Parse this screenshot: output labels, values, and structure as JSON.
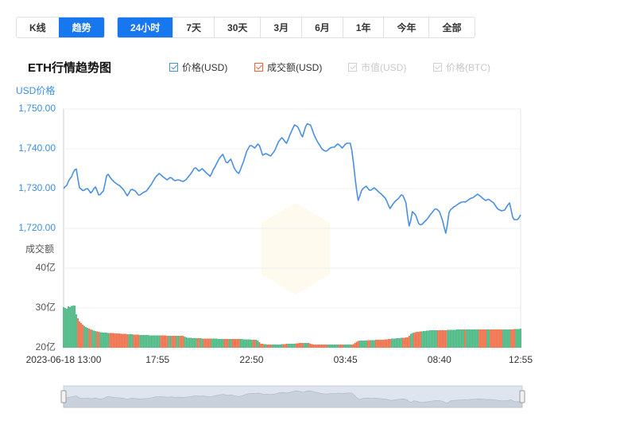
{
  "view_tabs": {
    "items": [
      "K线",
      "趋势"
    ],
    "active": 1
  },
  "period_tabs": {
    "items": [
      "24小时",
      "7天",
      "30天",
      "3月",
      "6月",
      "1年",
      "今年",
      "全部"
    ],
    "active": 0
  },
  "chart_data": {
    "type": "line",
    "title": "ETH行情趋势图",
    "y_label": "USD价格",
    "y2_label": "成交额",
    "disabled_legend": [
      "市值(USD)",
      "价格(BTC)"
    ],
    "categories": [
      "2023-06-18 13:00",
      null,
      null,
      null,
      null,
      null,
      null,
      null,
      null,
      null,
      null,
      null,
      null,
      null,
      null,
      null,
      null,
      null,
      null,
      null,
      null,
      null,
      null,
      null,
      null,
      null,
      null,
      null,
      null,
      null,
      null,
      null,
      null,
      null,
      null,
      null,
      null,
      null,
      null,
      null,
      null,
      null,
      null,
      null,
      null,
      null,
      null,
      null,
      null,
      null,
      null,
      null,
      null,
      null,
      null,
      null,
      null,
      null,
      null,
      "17:55",
      null,
      null,
      null,
      null,
      null,
      null,
      null,
      null,
      null,
      null,
      null,
      null,
      null,
      null,
      null,
      null,
      null,
      null,
      null,
      null,
      null,
      null,
      null,
      null,
      null,
      null,
      null,
      null,
      null,
      null,
      null,
      null,
      null,
      null,
      null,
      null,
      null,
      null,
      null,
      null,
      null,
      null,
      null,
      null,
      null,
      null,
      null,
      null,
      null,
      null,
      null,
      null,
      null,
      null,
      null,
      null,
      null,
      null,
      "22:50",
      null,
      null,
      null,
      null,
      null,
      null,
      null,
      null,
      null,
      null,
      null,
      null,
      null,
      null,
      null,
      null,
      null,
      null,
      null,
      null,
      null,
      null,
      null,
      null,
      null,
      null,
      null,
      null,
      null,
      null,
      null,
      null,
      null,
      null,
      null,
      null,
      null,
      null,
      null,
      null,
      null,
      null,
      null,
      null,
      null,
      null,
      null,
      null,
      null,
      null,
      null,
      null,
      null,
      null,
      null,
      null,
      null,
      null,
      "03:45",
      null,
      null,
      null,
      null,
      null,
      null,
      null,
      null,
      null,
      null,
      null,
      null,
      null,
      null,
      null,
      null,
      null,
      null,
      null,
      null,
      null,
      null,
      null,
      null,
      null,
      null,
      null,
      null,
      null,
      null,
      null,
      null,
      null,
      null,
      null,
      null,
      null,
      null,
      null,
      null,
      null,
      null,
      null,
      null,
      null,
      null,
      null,
      null,
      null,
      null,
      null,
      null,
      null,
      null,
      null,
      null,
      null,
      null,
      "08:40",
      null,
      null,
      null,
      null,
      null,
      null,
      null,
      null,
      null,
      null,
      null,
      null,
      null,
      null,
      null,
      null,
      null,
      null,
      null,
      null,
      null,
      null,
      null,
      null,
      null,
      null,
      null,
      null,
      null,
      null,
      null,
      null,
      null,
      null,
      null,
      null,
      null,
      null,
      null,
      null,
      null,
      null,
      null,
      null,
      null,
      null,
      null,
      null,
      null,
      null,
      "12:55"
    ],
    "series": [
      {
        "name": "价格(USD)",
        "type": "line",
        "color": "#4a90e2",
        "values": [
          1730.0,
          1730.5,
          1730.8,
          1731.8,
          1732.5,
          1733.0,
          1734.0,
          1734.7,
          1734.9,
          1732.4,
          1730.2,
          1729.9,
          1729.5,
          1729.6,
          1729.9,
          1730.0,
          1729.5,
          1728.9,
          1729.3,
          1730.0,
          1730.4,
          1729.5,
          1728.4,
          1728.5,
          1729.0,
          1729.4,
          1731.2,
          1733.2,
          1733.6,
          1733.0,
          1732.4,
          1732.0,
          1731.6,
          1731.3,
          1731.0,
          1730.8,
          1730.4,
          1730.0,
          1729.5,
          1728.8,
          1728.2,
          1728.8,
          1729.6,
          1729.8,
          1729.6,
          1729.4,
          1728.9,
          1728.4,
          1728.4,
          1728.7,
          1729.0,
          1729.2,
          1729.4,
          1729.9,
          1730.5,
          1731.0,
          1731.7,
          1732.4,
          1733.0,
          1733.4,
          1733.8,
          1733.5,
          1733.1,
          1732.8,
          1732.5,
          1732.2,
          1732.5,
          1732.8,
          1732.6,
          1732.2,
          1732.0,
          1732.1,
          1732.2,
          1732.1,
          1731.9,
          1731.8,
          1732.0,
          1732.3,
          1732.8,
          1733.3,
          1733.8,
          1734.4,
          1735.1,
          1735.2,
          1734.8,
          1734.4,
          1734.7,
          1735.0,
          1734.6,
          1734.2,
          1733.8,
          1733.5,
          1733.1,
          1733.8,
          1734.8,
          1735.4,
          1736.2,
          1737.0,
          1737.7,
          1738.2,
          1738.6,
          1737.6,
          1736.6,
          1736.5,
          1737.0,
          1737.4,
          1736.4,
          1735.3,
          1734.6,
          1734.1,
          1733.8,
          1734.7,
          1735.8,
          1736.8,
          1738.1,
          1739.4,
          1740.1,
          1740.8,
          1740.8,
          1740.5,
          1740.2,
          1740.7,
          1741.2,
          1740.8,
          1739.6,
          1738.4,
          1738.6,
          1738.8,
          1738.6,
          1738.4,
          1738.2,
          1738.7,
          1739.2,
          1739.9,
          1740.9,
          1741.8,
          1742.3,
          1742.8,
          1742.4,
          1741.8,
          1741.4,
          1742.3,
          1743.4,
          1744.3,
          1745.2,
          1746.0,
          1745.8,
          1745.5,
          1744.7,
          1743.7,
          1743.0,
          1744.3,
          1745.6,
          1746.3,
          1746.1,
          1746.0,
          1745.0,
          1743.8,
          1742.9,
          1742.1,
          1741.4,
          1740.8,
          1740.1,
          1739.7,
          1739.5,
          1739.4,
          1739.7,
          1740.1,
          1740.3,
          1740.4,
          1740.4,
          1740.8,
          1741.2,
          1741.0,
          1740.6,
          1740.2,
          1740.7,
          1741.2,
          1741.4,
          1741.4,
          1741.4,
          1739.6,
          1736.5,
          1732.8,
          1729.6,
          1727.0,
          1728.1,
          1729.4,
          1730.0,
          1730.3,
          1730.6,
          1730.1,
          1729.6,
          1729.6,
          1729.9,
          1730.2,
          1729.9,
          1729.5,
          1729.1,
          1728.8,
          1728.4,
          1728.0,
          1727.6,
          1726.8,
          1725.8,
          1725.0,
          1725.6,
          1726.2,
          1726.7,
          1727.1,
          1727.4,
          1727.9,
          1728.4,
          1728.3,
          1727.4,
          1726.4,
          1723.1,
          1720.6,
          1722.0,
          1724.2,
          1723.8,
          1723.4,
          1722.3,
          1721.2,
          1720.9,
          1721.0,
          1721.4,
          1721.8,
          1722.2,
          1722.7,
          1723.3,
          1723.8,
          1724.3,
          1724.8,
          1724.9,
          1724.6,
          1724.2,
          1723.1,
          1721.9,
          1720.2,
          1718.8,
          1721.0,
          1723.9,
          1724.7,
          1725.0,
          1725.4,
          1725.6,
          1725.9,
          1726.2,
          1726.4,
          1726.6,
          1726.7,
          1726.6,
          1726.8,
          1727.1,
          1727.4,
          1727.6,
          1727.7,
          1728.0,
          1728.3,
          1728.6,
          1728.3,
          1728.0,
          1727.6,
          1727.3,
          1727.0,
          1727.2,
          1727.3,
          1727.0,
          1726.7,
          1726.4,
          1725.8,
          1725.2,
          1724.8,
          1724.6,
          1724.4,
          1724.5,
          1724.6,
          1725.3,
          1725.9,
          1726.4,
          1724.7,
          1722.8,
          1722.2,
          1722.2,
          1722.2,
          1722.7,
          1723.4
        ]
      },
      {
        "name": "成交额(USD)",
        "type": "bar",
        "axis": "y2",
        "color": "#f0643c",
        "up_color": "#3cb37a",
        "down_color": "#f0643c",
        "values": [
          30.2,
          30.0,
          29.8,
          30.4,
          30.2,
          30.5,
          30.6,
          30.6,
          28.4,
          27.4,
          26.6,
          26.2,
          25.8,
          25.5,
          25.2,
          25.0,
          24.8,
          24.6,
          24.5,
          24.3,
          24.2,
          24.1,
          24.0,
          23.9,
          23.9,
          23.8,
          23.8,
          23.8,
          23.7,
          23.7,
          23.7,
          23.7,
          23.6,
          23.6,
          23.6,
          23.6,
          23.5,
          23.5,
          23.5,
          23.5,
          23.4,
          23.4,
          23.4,
          23.4,
          23.3,
          23.3,
          23.3,
          23.3,
          23.2,
          23.2,
          23.2,
          23.2,
          23.2,
          23.2,
          23.1,
          23.1,
          23.1,
          23.1,
          23.1,
          23.1,
          23.1,
          23.1,
          23.1,
          23.1,
          23.1,
          23.0,
          23.0,
          23.0,
          23.0,
          23.0,
          23.0,
          23.0,
          23.0,
          23.0,
          23.0,
          23.0,
          22.8,
          22.6,
          22.5,
          22.5,
          22.5,
          22.4,
          22.4,
          22.4,
          22.4,
          22.4,
          22.4,
          22.3,
          22.3,
          22.3,
          22.3,
          22.3,
          22.3,
          22.3,
          22.3,
          22.3,
          22.3,
          22.2,
          22.2,
          22.2,
          22.2,
          22.2,
          22.2,
          22.2,
          22.2,
          22.2,
          22.2,
          22.2,
          22.2,
          22.2,
          22.2,
          22.2,
          22.2,
          22.1,
          22.1,
          22.1,
          22.1,
          22.1,
          22.0,
          22.0,
          22.0,
          22.0,
          21.8,
          21.4,
          21.0,
          21.0,
          20.9,
          20.9,
          20.8,
          20.8,
          20.8,
          20.8,
          20.8,
          20.8,
          20.8,
          20.8,
          20.8,
          20.9,
          20.9,
          20.9,
          21.0,
          21.0,
          21.0,
          21.0,
          21.0,
          21.0,
          21.1,
          21.1,
          21.2,
          21.2,
          21.2,
          21.2,
          21.2,
          21.2,
          21.2,
          21.0,
          20.9,
          20.8,
          20.8,
          20.8,
          20.8,
          20.8,
          20.8,
          20.8,
          20.8,
          20.8,
          20.8,
          20.8,
          20.8,
          20.8,
          20.8,
          20.8,
          20.8,
          20.8,
          20.8,
          20.8,
          20.8,
          20.8,
          20.8,
          20.8,
          20.8,
          20.8,
          20.9,
          21.2,
          21.5,
          21.7,
          21.8,
          21.8,
          21.8,
          21.8,
          21.8,
          21.9,
          21.9,
          21.9,
          21.9,
          21.9,
          22.0,
          22.0,
          22.0,
          22.0,
          22.0,
          22.0,
          22.1,
          22.1,
          22.2,
          22.2,
          22.3,
          22.3,
          22.3,
          22.4,
          22.4,
          22.4,
          22.5,
          22.5,
          22.5,
          22.6,
          22.6,
          23.0,
          23.5,
          23.7,
          23.8,
          23.9,
          24.0,
          24.0,
          24.1,
          24.1,
          24.2,
          24.2,
          24.3,
          24.3,
          24.4,
          24.4,
          24.4,
          24.4,
          24.4,
          24.4,
          24.4,
          24.4,
          24.4,
          24.4,
          24.4,
          24.5,
          24.5,
          24.5,
          24.5,
          24.5,
          24.5,
          24.6,
          24.6,
          24.6,
          24.6,
          24.6,
          24.6,
          24.6,
          24.6,
          24.6,
          24.6,
          24.6,
          24.6,
          24.6,
          24.6,
          24.6,
          24.6,
          24.6,
          24.6,
          24.6,
          24.6,
          24.6,
          24.6,
          24.6,
          24.6,
          24.6,
          24.6,
          24.6,
          24.6,
          24.6,
          24.6,
          24.6,
          24.6,
          24.6,
          24.6,
          24.6,
          24.6,
          24.7,
          24.7,
          24.7,
          24.7,
          24.8
        ]
      }
    ],
    "ylim": [
      1715,
      1750
    ],
    "yticks": [
      {
        "value": 1720,
        "label": "1,720.00"
      },
      {
        "value": 1730,
        "label": "1,730.00"
      },
      {
        "value": 1740,
        "label": "1,740.00"
      },
      {
        "value": 1750,
        "label": "1,750.00"
      }
    ],
    "y2lim": [
      20,
      40
    ],
    "y2ticks": [
      {
        "value": 20,
        "label": "20亿"
      },
      {
        "value": 30,
        "label": "30亿"
      },
      {
        "value": 40,
        "label": "40亿"
      }
    ],
    "grid": true
  }
}
